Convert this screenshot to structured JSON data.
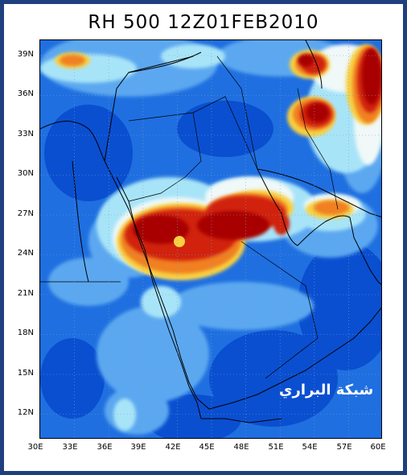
{
  "title": "RH 500  12Z01FEB2010",
  "watermark": "شبكة البراري",
  "y_axis": {
    "ticks": [
      "39N",
      "36N",
      "33N",
      "30N",
      "27N",
      "24N",
      "21N",
      "18N",
      "15N",
      "12N"
    ]
  },
  "x_axis": {
    "ticks": [
      "30E",
      "33E",
      "36E",
      "39E",
      "42E",
      "45E",
      "48E",
      "51E",
      "54E",
      "57E",
      "60E"
    ]
  },
  "map": {
    "variable": "Relative humidity at 500 hPa",
    "region": "Arabian Peninsula and Middle East",
    "lon_range": [
      30,
      60
    ],
    "lat_range": [
      10,
      40
    ],
    "grid": "dotted",
    "colors": {
      "very_dry": "#0a4fd0",
      "dry": "#2a7be8",
      "moderate": "#5ca8f0",
      "light": "#a8e4f8",
      "neutral": "#f0f8f8",
      "moist": "#f8d040",
      "humid": "#f08020",
      "very_humid": "#d02010",
      "saturated": "#a80000"
    }
  }
}
